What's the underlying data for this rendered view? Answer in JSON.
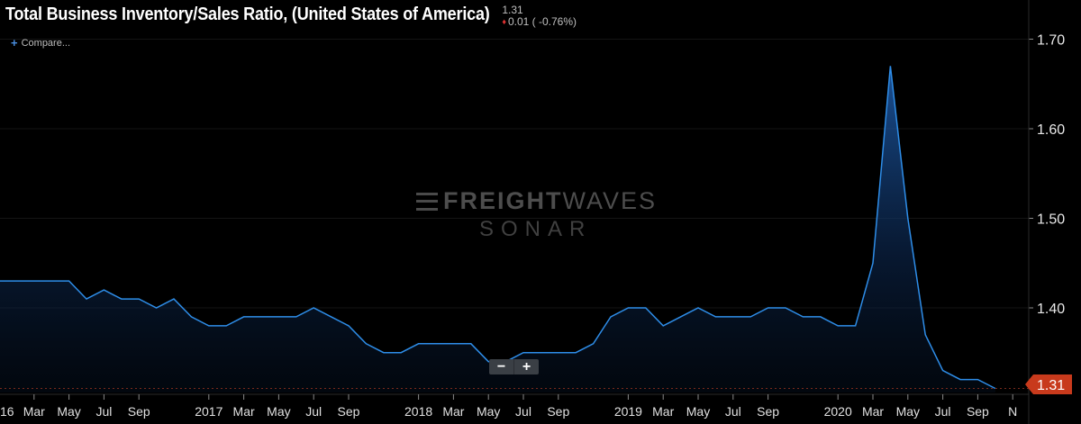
{
  "header": {
    "title": "Total Business Inventory/Sales Ratio, (United States of America)",
    "last_value": "1.31",
    "change": "0.01 ( -0.76%)"
  },
  "compare": {
    "label": "Compare..."
  },
  "zoom": {
    "minus": "−",
    "plus": "+"
  },
  "watermark": {
    "brand": "FREIGHT",
    "brand_light": "WAVES",
    "product": "SONAR"
  },
  "colors": {
    "line": "#2e8de8",
    "price_tag": "#c83a1c",
    "background": "#000000",
    "down": "#e03232"
  },
  "chart_data": {
    "type": "area",
    "title": "Total Business Inventory/Sales Ratio, (United States of America)",
    "ylim": [
      1.29,
      1.74
    ],
    "y_ticks": [
      "1.70",
      "1.60",
      "1.50",
      "1.40"
    ],
    "last_price_label": "1.31",
    "x_ticks": [
      {
        "label": "16",
        "m": 0
      },
      {
        "label": "Mar",
        "m": 2
      },
      {
        "label": "May",
        "m": 4
      },
      {
        "label": "Jul",
        "m": 6
      },
      {
        "label": "Sep",
        "m": 8
      },
      {
        "label": "2017",
        "m": 12
      },
      {
        "label": "Mar",
        "m": 14
      },
      {
        "label": "May",
        "m": 16
      },
      {
        "label": "Jul",
        "m": 18
      },
      {
        "label": "Sep",
        "m": 20
      },
      {
        "label": "2018",
        "m": 24
      },
      {
        "label": "Mar",
        "m": 26
      },
      {
        "label": "May",
        "m": 28
      },
      {
        "label": "Jul",
        "m": 30
      },
      {
        "label": "Sep",
        "m": 32
      },
      {
        "label": "2019",
        "m": 36
      },
      {
        "label": "Mar",
        "m": 38
      },
      {
        "label": "May",
        "m": 40
      },
      {
        "label": "Jul",
        "m": 42
      },
      {
        "label": "Sep",
        "m": 44
      },
      {
        "label": "2020",
        "m": 48
      },
      {
        "label": "Mar",
        "m": 50
      },
      {
        "label": "May",
        "m": 52
      },
      {
        "label": "Jul",
        "m": 54
      },
      {
        "label": "Sep",
        "m": 56
      },
      {
        "label": "N",
        "m": 58
      }
    ],
    "values": [
      1.43,
      1.43,
      1.43,
      1.43,
      1.43,
      1.41,
      1.42,
      1.41,
      1.41,
      1.4,
      1.41,
      1.39,
      1.38,
      1.38,
      1.39,
      1.39,
      1.39,
      1.39,
      1.4,
      1.39,
      1.38,
      1.36,
      1.35,
      1.35,
      1.36,
      1.36,
      1.36,
      1.36,
      1.34,
      1.34,
      1.35,
      1.35,
      1.35,
      1.35,
      1.36,
      1.39,
      1.4,
      1.4,
      1.38,
      1.39,
      1.4,
      1.39,
      1.39,
      1.39,
      1.4,
      1.4,
      1.39,
      1.39,
      1.38,
      1.38,
      1.45,
      1.67,
      1.5,
      1.37,
      1.33,
      1.32,
      1.32,
      1.31
    ]
  }
}
